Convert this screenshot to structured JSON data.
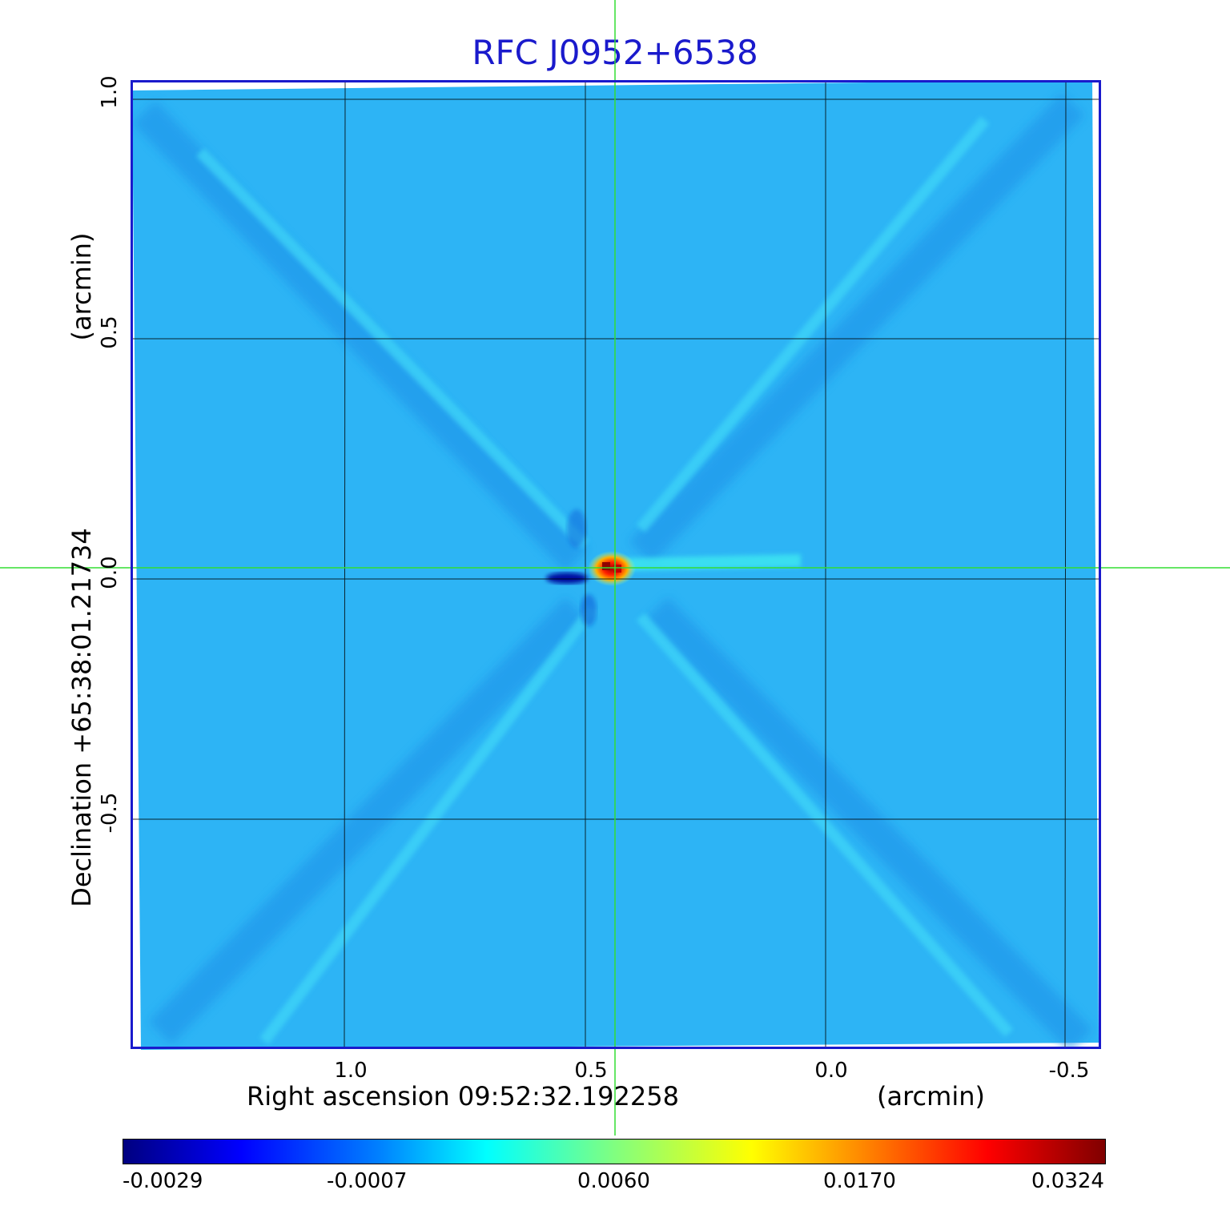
{
  "title": "RFC J0952+6538",
  "axes": {
    "x": {
      "label": "Right ascension  09:52:32.192258",
      "unit_label": "(arcmin)",
      "ticks": [
        "1.0",
        "0.5",
        "0.0",
        "-0.5"
      ]
    },
    "y": {
      "label": "Declination  +65:38:01.21734",
      "unit_label": "(arcmin)",
      "ticks": [
        "1.0",
        "0.5",
        "0.0",
        "-0.5"
      ]
    }
  },
  "colorbar": {
    "ticks": [
      "-0.0029",
      "-0.0007",
      "0.0060",
      "0.0170",
      "0.0324"
    ],
    "colors": [
      "#000080",
      "#0000ff",
      "#0080ff",
      "#00ffff",
      "#80ff80",
      "#ffff00",
      "#ff8000",
      "#ff0000",
      "#800000"
    ]
  },
  "colors": {
    "title": "#1a1acc",
    "frame": "#1a1acc",
    "background_map": "#2db4f5",
    "crosshair": "#33dd33",
    "grid": "#000000"
  }
}
